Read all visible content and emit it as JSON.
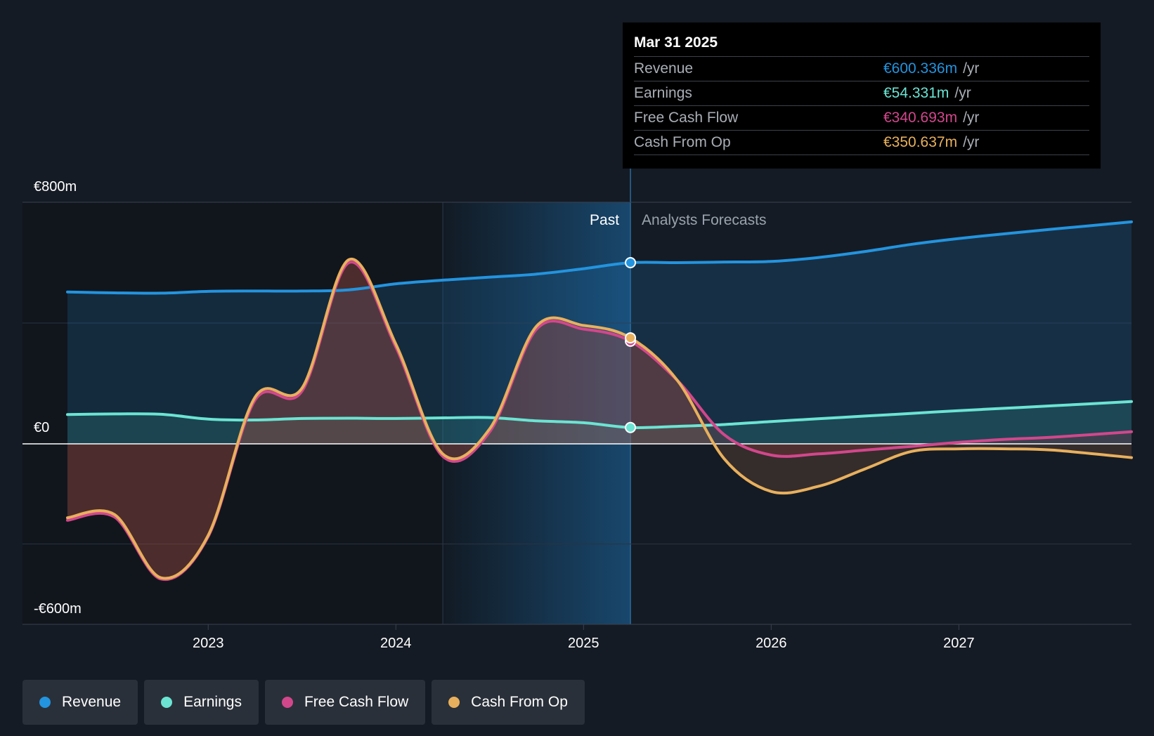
{
  "chart_data": {
    "type": "area",
    "currency": "€",
    "x_ticks": [
      "2023",
      "2024",
      "2025",
      "2026",
      "2027"
    ],
    "y_ticks": [
      {
        "value": 800,
        "label": "€800m"
      },
      {
        "value": 0,
        "label": "€0"
      },
      {
        "value": -600,
        "label": "-€600m"
      }
    ],
    "ylim": [
      -720,
      800
    ],
    "xlim": [
      2022.25,
      2027.92
    ],
    "past_label": "Past",
    "forecast_label": "Analysts Forecasts",
    "past_end": 2025.25,
    "highlight_start": 2024.25,
    "series": [
      {
        "name": "Revenue",
        "color": "#2394df",
        "points": [
          [
            2022.25,
            503
          ],
          [
            2022.5,
            500
          ],
          [
            2022.75,
            499
          ],
          [
            2023.0,
            505
          ],
          [
            2023.25,
            506
          ],
          [
            2023.5,
            506
          ],
          [
            2023.75,
            510
          ],
          [
            2024.0,
            530
          ],
          [
            2024.25,
            542
          ],
          [
            2024.5,
            552
          ],
          [
            2024.75,
            562
          ],
          [
            2025.0,
            580
          ],
          [
            2025.25,
            600
          ],
          [
            2025.5,
            600
          ],
          [
            2025.75,
            602
          ],
          [
            2026.0,
            604
          ],
          [
            2026.25,
            617
          ],
          [
            2026.5,
            637
          ],
          [
            2026.75,
            661
          ],
          [
            2027.0,
            680
          ],
          [
            2027.25,
            696
          ],
          [
            2027.5,
            711
          ],
          [
            2027.92,
            735
          ]
        ]
      },
      {
        "name": "Earnings",
        "color": "#6be4d3",
        "points": [
          [
            2022.25,
            97
          ],
          [
            2022.5,
            99
          ],
          [
            2022.75,
            98
          ],
          [
            2023.0,
            82
          ],
          [
            2023.25,
            79
          ],
          [
            2023.5,
            84
          ],
          [
            2023.75,
            85
          ],
          [
            2024.0,
            84
          ],
          [
            2024.25,
            86
          ],
          [
            2024.5,
            87
          ],
          [
            2024.75,
            76
          ],
          [
            2025.0,
            70
          ],
          [
            2025.25,
            54
          ],
          [
            2025.5,
            58
          ],
          [
            2025.75,
            64
          ],
          [
            2026.0,
            74
          ],
          [
            2026.25,
            83
          ],
          [
            2026.5,
            92
          ],
          [
            2026.75,
            101
          ],
          [
            2027.0,
            110
          ],
          [
            2027.25,
            118
          ],
          [
            2027.5,
            126
          ],
          [
            2027.92,
            140
          ]
        ]
      },
      {
        "name": "Free Cash Flow",
        "color": "#d2478c",
        "points": [
          [
            2022.25,
            -305
          ],
          [
            2022.5,
            -292
          ],
          [
            2022.75,
            -540
          ],
          [
            2023.0,
            -370
          ],
          [
            2023.25,
            145
          ],
          [
            2023.5,
            175
          ],
          [
            2023.75,
            600
          ],
          [
            2024.0,
            320
          ],
          [
            2024.25,
            -50
          ],
          [
            2024.5,
            40
          ],
          [
            2024.75,
            380
          ],
          [
            2025.0,
            380
          ],
          [
            2025.25,
            340
          ],
          [
            2025.5,
            210
          ],
          [
            2025.75,
            30
          ],
          [
            2026.0,
            -45
          ],
          [
            2026.25,
            -40
          ],
          [
            2026.5,
            -25
          ],
          [
            2026.75,
            -10
          ],
          [
            2027.0,
            5
          ],
          [
            2027.25,
            15
          ],
          [
            2027.5,
            22
          ],
          [
            2027.92,
            40
          ]
        ]
      },
      {
        "name": "Cash From Op",
        "color": "#e8b05d",
        "points": [
          [
            2022.25,
            -295
          ],
          [
            2022.5,
            -282
          ],
          [
            2022.75,
            -535
          ],
          [
            2023.0,
            -365
          ],
          [
            2023.25,
            155
          ],
          [
            2023.5,
            185
          ],
          [
            2023.75,
            610
          ],
          [
            2024.0,
            330
          ],
          [
            2024.25,
            -40
          ],
          [
            2024.5,
            50
          ],
          [
            2024.75,
            390
          ],
          [
            2025.0,
            392
          ],
          [
            2025.25,
            351
          ],
          [
            2025.5,
            210
          ],
          [
            2025.75,
            -60
          ],
          [
            2026.0,
            -190
          ],
          [
            2026.25,
            -170
          ],
          [
            2026.5,
            -100
          ],
          [
            2026.75,
            -30
          ],
          [
            2027.0,
            -20
          ],
          [
            2027.25,
            -20
          ],
          [
            2027.5,
            -25
          ],
          [
            2027.92,
            -55
          ]
        ]
      }
    ]
  },
  "tooltip": {
    "date": "Mar 31 2025",
    "rows": [
      {
        "name": "Revenue",
        "value": "€600.336m",
        "unit": "/yr",
        "color": "#2394df"
      },
      {
        "name": "Earnings",
        "value": "€54.331m",
        "unit": "/yr",
        "color": "#6be4d3"
      },
      {
        "name": "Free Cash Flow",
        "value": "€340.693m",
        "unit": "/yr",
        "color": "#d2478c"
      },
      {
        "name": "Cash From Op",
        "value": "€350.637m",
        "unit": "/yr",
        "color": "#e8b05d"
      }
    ]
  },
  "legend": [
    {
      "label": "Revenue",
      "color": "#2394df"
    },
    {
      "label": "Earnings",
      "color": "#6be4d3"
    },
    {
      "label": "Free Cash Flow",
      "color": "#d2478c"
    },
    {
      "label": "Cash From Op",
      "color": "#e8b05d"
    }
  ]
}
